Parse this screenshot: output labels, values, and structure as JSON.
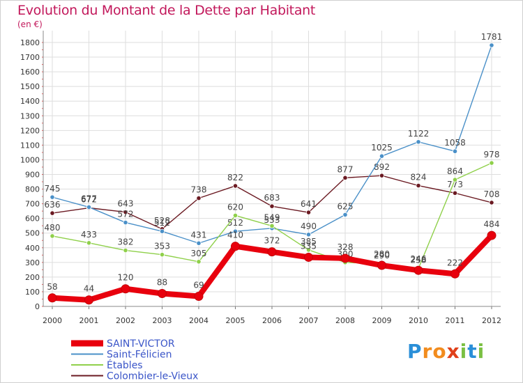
{
  "title": "Evolution du Montant de la Dette par Habitant",
  "subtitle": "(en €)",
  "logo": {
    "text": "Proxiti",
    "colors": [
      "#2a8fd8",
      "#f28c1e",
      "#f28c1e",
      "#e0401a",
      "#7bc043",
      "#2a8fd8",
      "#7bc043"
    ]
  },
  "chart_data": {
    "type": "line",
    "x": [
      2000,
      2001,
      2002,
      2003,
      2004,
      2005,
      2006,
      2007,
      2008,
      2009,
      2010,
      2011,
      2012
    ],
    "ylim": [
      0,
      1800
    ],
    "yticks": [
      0,
      100,
      200,
      300,
      400,
      500,
      600,
      700,
      800,
      900,
      1000,
      1100,
      1200,
      1300,
      1400,
      1500,
      1600,
      1700,
      1800
    ],
    "grid": true,
    "legend": "bottom-left",
    "series": [
      {
        "name": "Colombier-le-Vieux",
        "color": "#6b1a22",
        "values": [
          636,
          672,
          643,
          528,
          738,
          822,
          683,
          641,
          877,
          892,
          824,
          773,
          708
        ]
      },
      {
        "name": "Saint-Félicien",
        "color": "#4a90c8",
        "values": [
          745,
          677,
          572,
          512,
          431,
          512,
          533,
          490,
          625,
          1025,
          1122,
          1058,
          1781
        ]
      },
      {
        "name": "Étables",
        "color": "#8fd04a",
        "values": [
          480,
          433,
          382,
          353,
          305,
          620,
          549,
          385,
          300,
          290,
          258,
          864,
          978
        ]
      },
      {
        "name": "SAINT-VICTOR",
        "color": "#e8000d",
        "values": [
          58,
          44,
          120,
          88,
          69,
          410,
          372,
          335,
          328,
          280,
          246,
          222,
          484
        ]
      }
    ]
  }
}
